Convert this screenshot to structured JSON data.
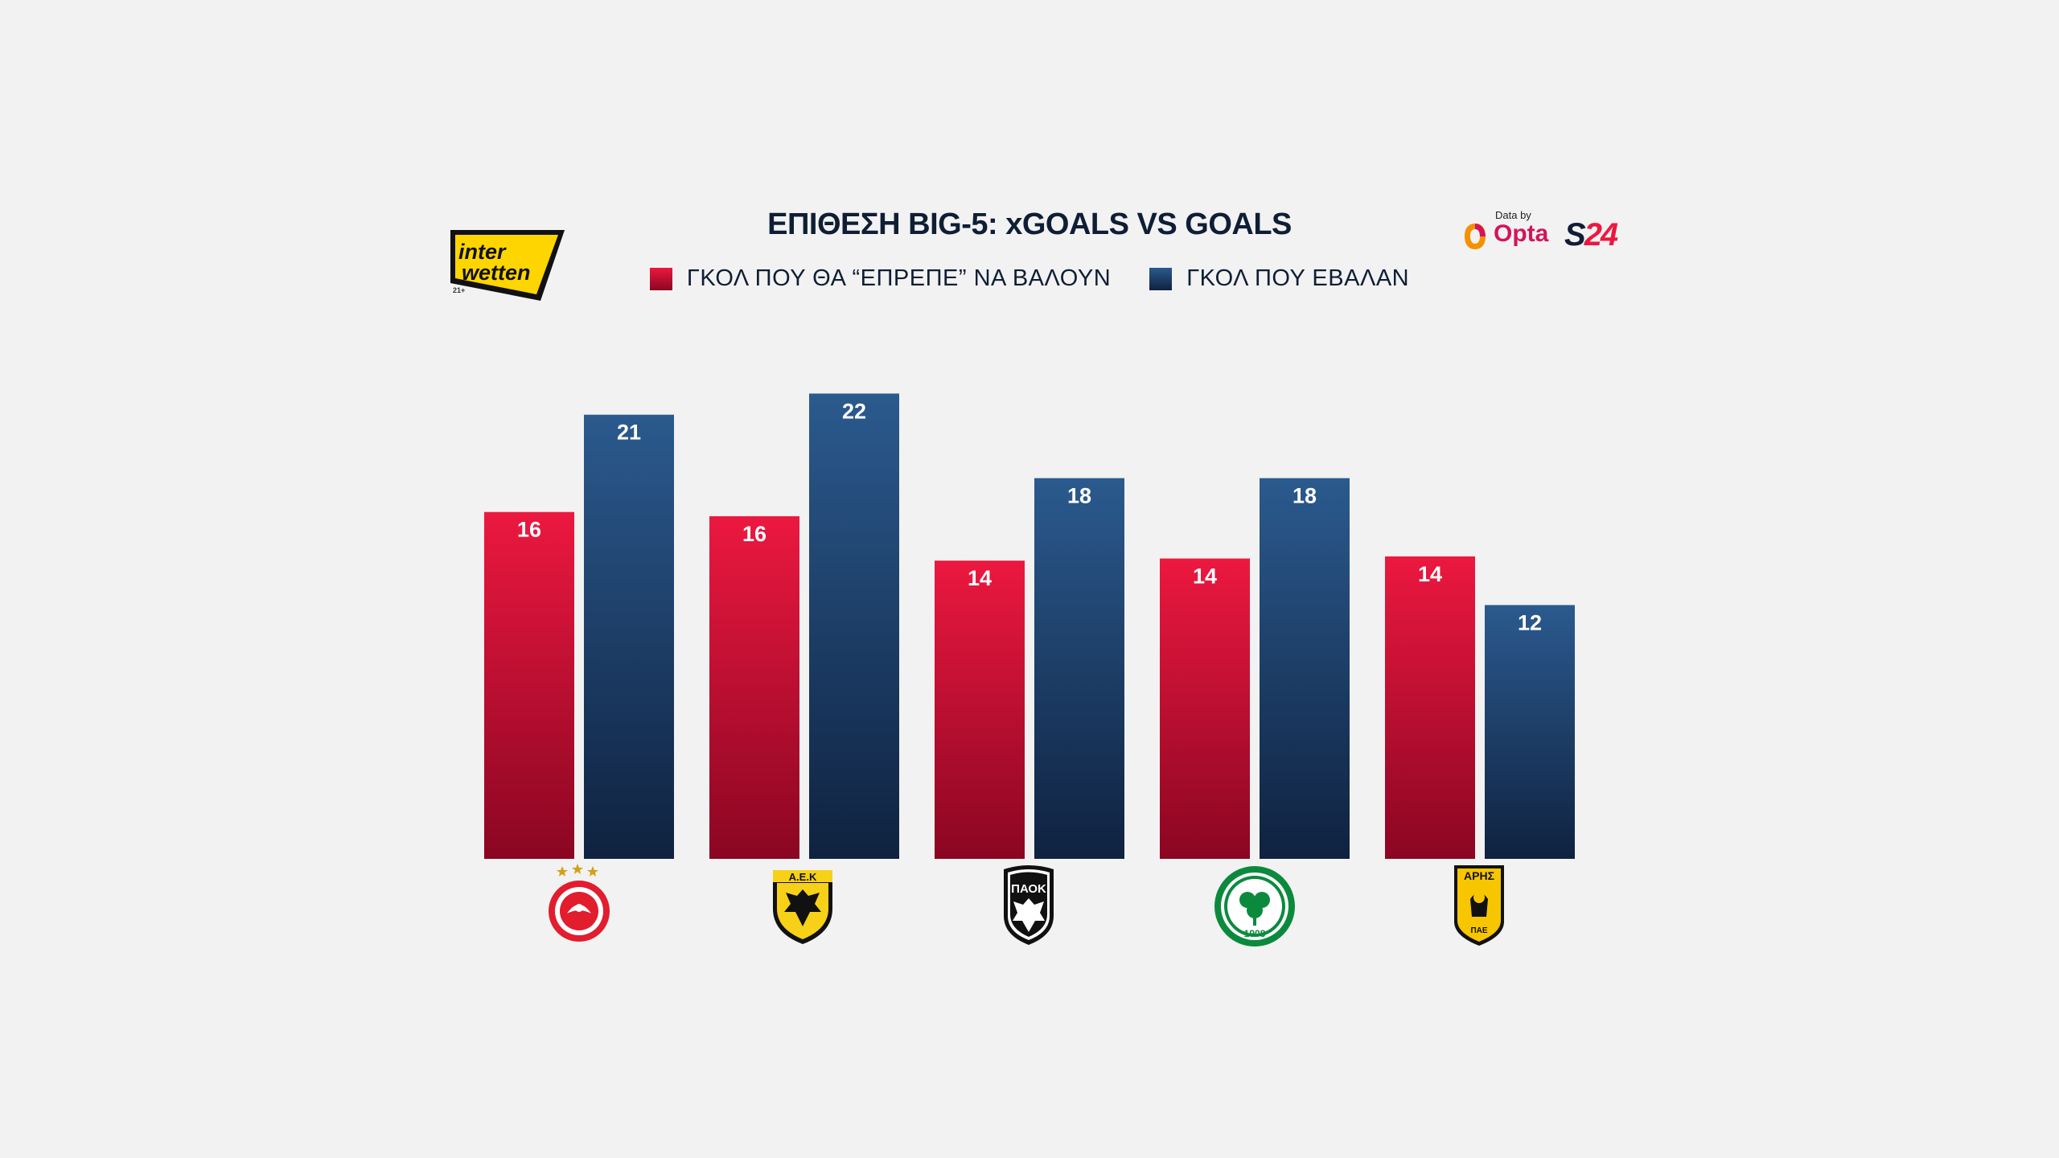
{
  "header": {
    "title": "ΕΠΙΘΕΣΗ BIG-5: xGOALS VS GOALS"
  },
  "sponsor": {
    "line1": "inter",
    "line2": "wetten",
    "age": "21+"
  },
  "provider": {
    "data_by": "Data by",
    "opta": "Opta",
    "s24_s": "S",
    "s24_num": "24"
  },
  "colors": {
    "xg_top": "#ec1840",
    "xg_bottom": "#8a0622",
    "goals_top": "#2b5a8e",
    "goals_bottom": "#0f2240",
    "background": "#f2f2f2",
    "text": "#0f1e35"
  },
  "chart_data": {
    "type": "bar",
    "title": "ΕΠΙΘΕΣΗ BIG-5: xGOALS VS GOALS",
    "categories": [
      "olympiacos-crest",
      "aek-crest",
      "paok-crest",
      "panathinaikos-crest",
      "aris-crest"
    ],
    "series": [
      {
        "name": "ΓΚΟΛ ΠΟΥ ΘΑ “ΕΠΡΕΠΕ” ΝΑ ΒΑΛΟΥΝ",
        "values": [
          16.4,
          16.2,
          14.1,
          14.2,
          14.3
        ],
        "labels": [
          "16",
          "16",
          "14",
          "14",
          "14"
        ],
        "color": "#ec1840"
      },
      {
        "name": "ΓΚΟΛ ΠΟΥ ΕΒΑΛΑΝ",
        "values": [
          21,
          22,
          18,
          18,
          12
        ],
        "labels": [
          "21",
          "22",
          "18",
          "18",
          "12"
        ],
        "color": "#2b5a8e"
      }
    ],
    "ylim": [
      0,
      22
    ],
    "grid": false,
    "legend": "top-center",
    "xlabel": "",
    "ylabel": ""
  },
  "crests": {
    "aek": "Α.Ε.Κ",
    "paok": "ΠΑΟΚ",
    "panathinaikos": "1908",
    "aris": "ΑΡΗΣ",
    "aris_sub": "ΠΑΕ"
  }
}
